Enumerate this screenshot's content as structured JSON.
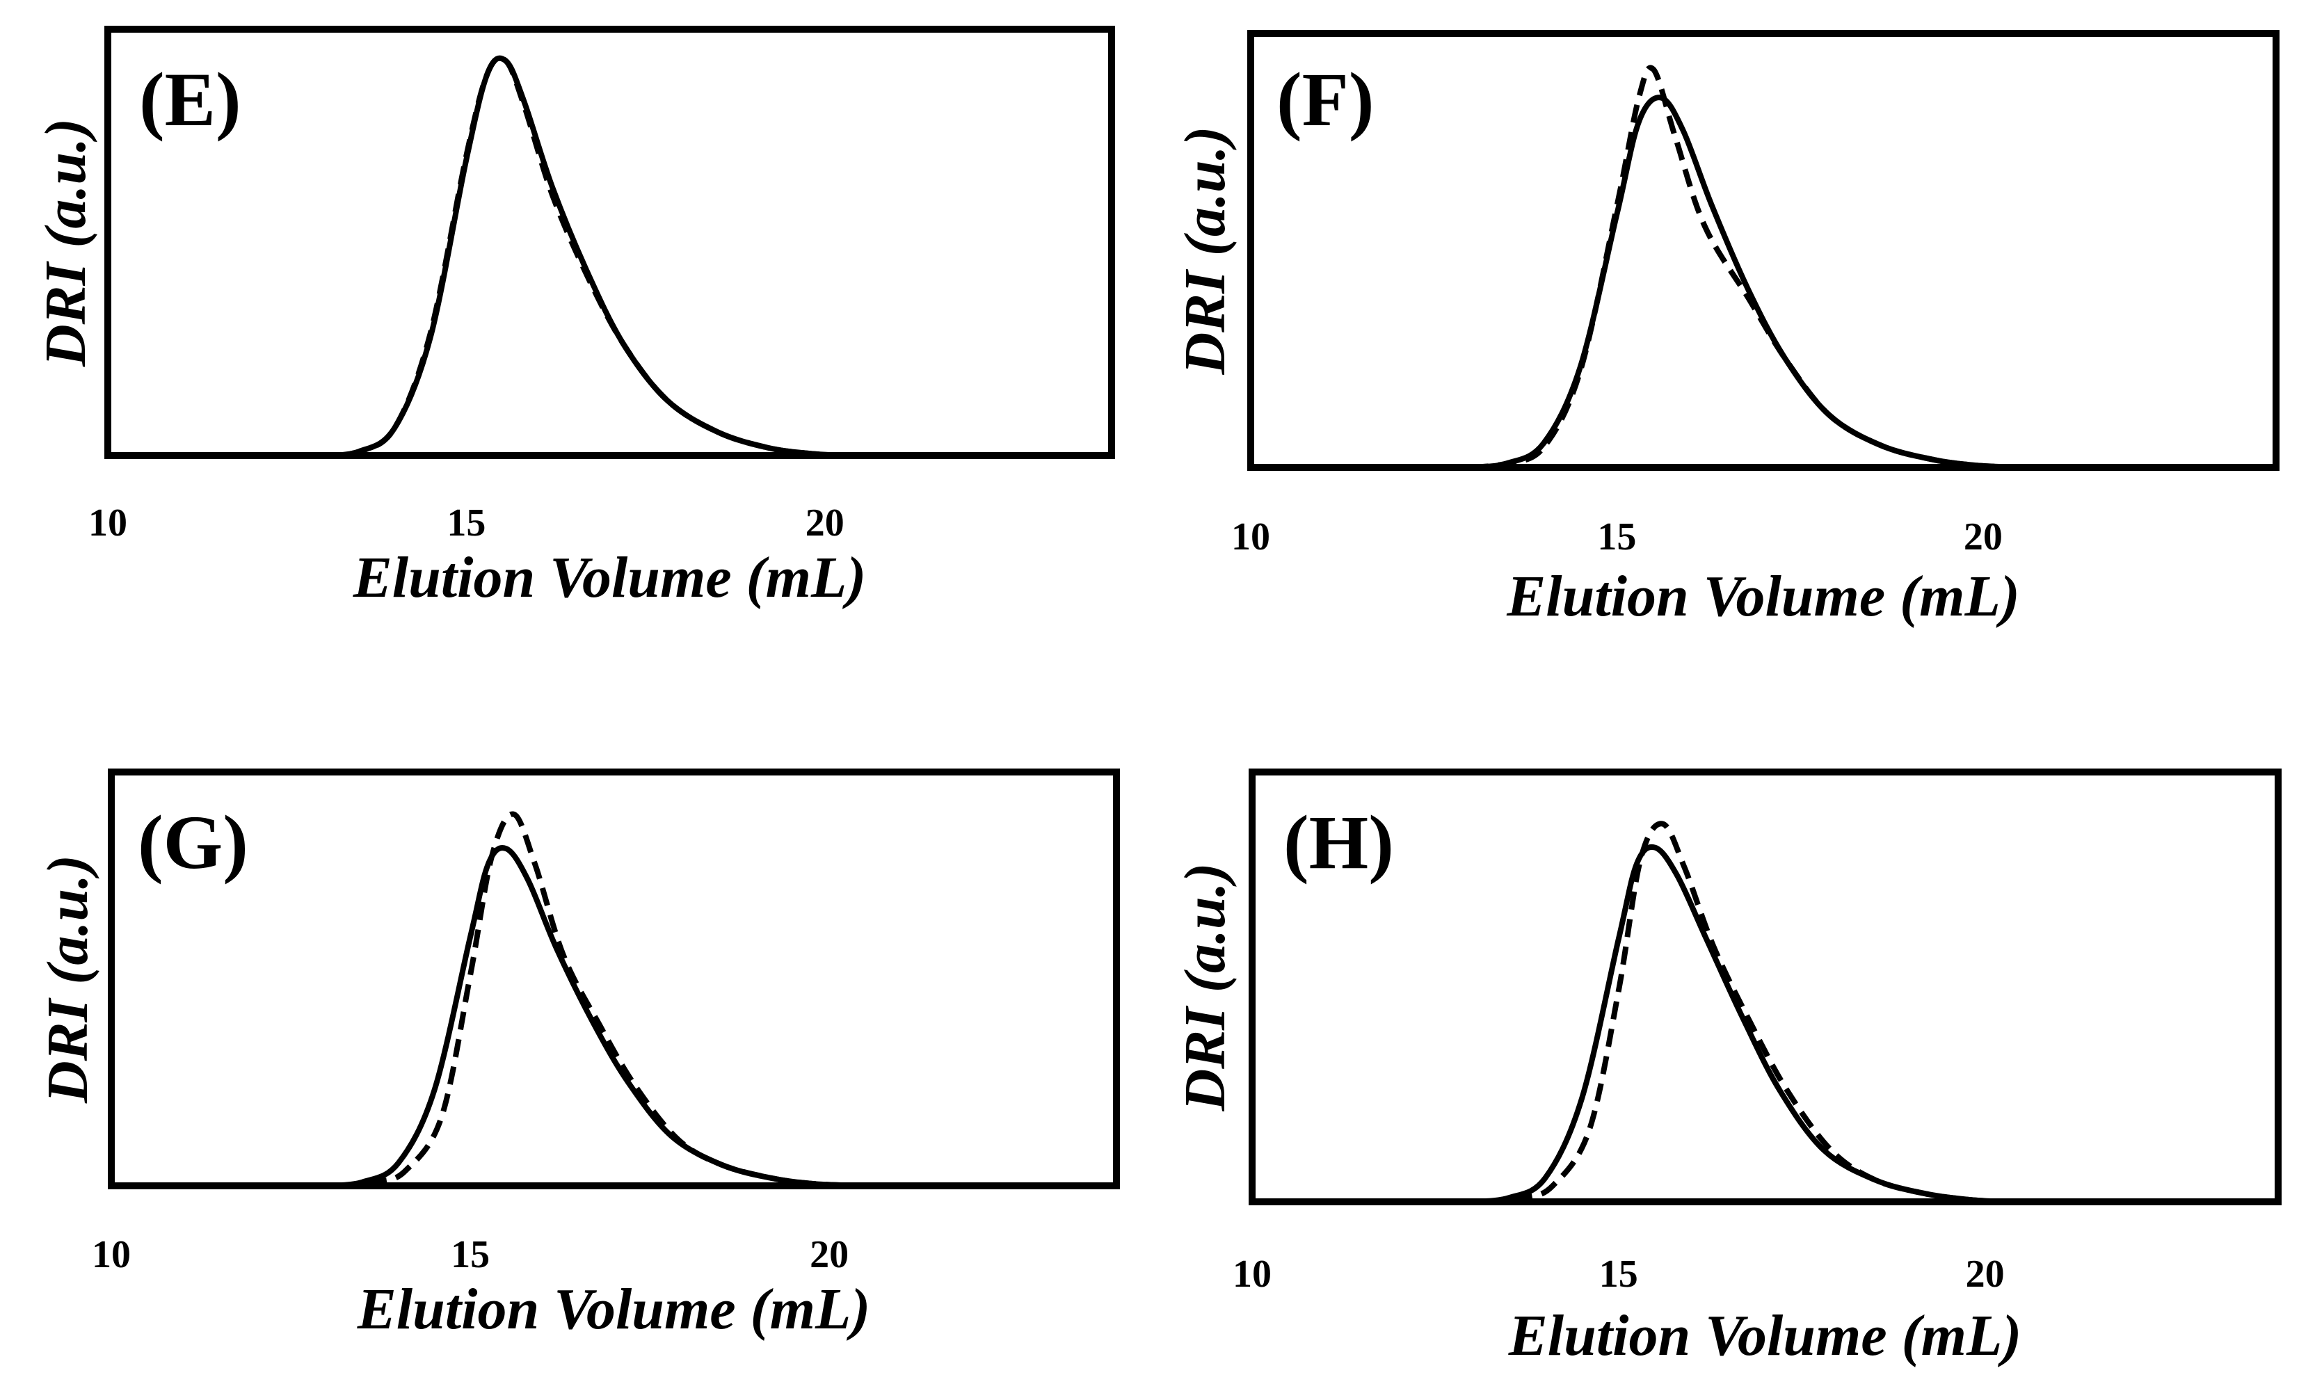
{
  "chart_data": [
    {
      "type": "line",
      "panel_label": "(E)",
      "xlabel": "Elution Volume (mL)",
      "ylabel": "DRI (a.u.)",
      "xlim": [
        10,
        24
      ],
      "ylim": [
        0,
        1.08
      ],
      "xticks": [
        "10",
        "15",
        "20"
      ],
      "series": [
        {
          "name": "solid",
          "style": "solid",
          "x": [
            13.0,
            13.5,
            14.0,
            14.5,
            15.0,
            15.3,
            15.55,
            15.8,
            16.2,
            16.7,
            17.2,
            17.8,
            18.5,
            19.2,
            19.8,
            20.3
          ],
          "y": [
            0.0,
            0.01,
            0.07,
            0.3,
            0.75,
            0.97,
            1.0,
            0.9,
            0.68,
            0.46,
            0.28,
            0.14,
            0.06,
            0.02,
            0.005,
            0.0
          ]
        },
        {
          "name": "dashed",
          "style": "dashed",
          "x": [
            13.0,
            13.5,
            14.0,
            14.5,
            15.0,
            15.3,
            15.55,
            15.8,
            16.2,
            16.7,
            17.2,
            17.8,
            18.5,
            19.2,
            19.8,
            20.3
          ],
          "y": [
            0.0,
            0.01,
            0.07,
            0.31,
            0.76,
            0.97,
            1.0,
            0.89,
            0.66,
            0.45,
            0.28,
            0.14,
            0.06,
            0.02,
            0.005,
            0.0
          ]
        }
      ]
    },
    {
      "type": "line",
      "panel_label": "(F)",
      "xlabel": "Elution Volume (mL)",
      "ylabel": "DRI (a.u.)",
      "xlim": [
        10,
        24
      ],
      "ylim": [
        0,
        1.08
      ],
      "xticks": [
        "10",
        "15",
        "20"
      ],
      "series": [
        {
          "name": "solid",
          "style": "solid",
          "x": [
            13.0,
            13.5,
            14.0,
            14.5,
            15.0,
            15.3,
            15.6,
            15.9,
            16.3,
            16.8,
            17.3,
            17.9,
            18.6,
            19.3,
            19.9,
            20.5
          ],
          "y": [
            0.0,
            0.01,
            0.06,
            0.25,
            0.63,
            0.86,
            0.92,
            0.84,
            0.65,
            0.44,
            0.27,
            0.13,
            0.055,
            0.02,
            0.005,
            0.0
          ]
        },
        {
          "name": "dashed",
          "style": "dashed",
          "x": [
            13.0,
            13.5,
            14.0,
            14.5,
            15.0,
            15.3,
            15.5,
            15.8,
            16.2,
            16.8,
            17.3,
            17.9,
            18.6,
            19.3,
            19.9,
            20.5
          ],
          "y": [
            0.0,
            0.01,
            0.05,
            0.24,
            0.65,
            0.92,
            0.99,
            0.82,
            0.6,
            0.42,
            0.27,
            0.13,
            0.055,
            0.02,
            0.005,
            0.0
          ]
        }
      ]
    },
    {
      "type": "line",
      "panel_label": "(G)",
      "xlabel": "Elution Volume (mL)",
      "ylabel": "DRI (a.u.)",
      "xlim": [
        10,
        24
      ],
      "ylim": [
        0,
        1.08
      ],
      "xticks": [
        "10",
        "15",
        "20"
      ],
      "series": [
        {
          "name": "solid",
          "style": "solid",
          "x": [
            13.0,
            13.5,
            14.0,
            14.5,
            15.0,
            15.25,
            15.5,
            15.8,
            16.2,
            16.7,
            17.2,
            17.8,
            18.5,
            19.2,
            19.8,
            20.5
          ],
          "y": [
            0.0,
            0.01,
            0.06,
            0.25,
            0.65,
            0.84,
            0.88,
            0.8,
            0.62,
            0.43,
            0.27,
            0.13,
            0.055,
            0.02,
            0.005,
            0.0
          ]
        },
        {
          "name": "dashed",
          "style": "dashed",
          "x": [
            13.2,
            13.7,
            14.1,
            14.6,
            15.0,
            15.3,
            15.6,
            15.9,
            16.3,
            16.8,
            17.3,
            17.9,
            18.5,
            19.2,
            19.8,
            20.5
          ],
          "y": [
            0.0,
            0.01,
            0.04,
            0.18,
            0.55,
            0.86,
            0.97,
            0.84,
            0.6,
            0.42,
            0.26,
            0.12,
            0.055,
            0.02,
            0.005,
            0.0
          ]
        }
      ]
    },
    {
      "type": "line",
      "panel_label": "(H)",
      "xlabel": "Elution Volume (mL)",
      "ylabel": "DRI (a.u.)",
      "xlim": [
        10,
        24
      ],
      "ylim": [
        0,
        1.08
      ],
      "xticks": [
        "10",
        "15",
        "20"
      ],
      "series": [
        {
          "name": "solid",
          "style": "solid",
          "x": [
            13.0,
            13.5,
            14.0,
            14.5,
            15.0,
            15.25,
            15.5,
            15.8,
            16.2,
            16.7,
            17.2,
            17.8,
            18.5,
            19.2,
            19.8,
            20.3
          ],
          "y": [
            0.0,
            0.01,
            0.06,
            0.26,
            0.66,
            0.85,
            0.89,
            0.82,
            0.66,
            0.46,
            0.28,
            0.13,
            0.055,
            0.02,
            0.005,
            0.0
          ]
        },
        {
          "name": "dashed",
          "style": "dashed",
          "x": [
            13.2,
            13.7,
            14.1,
            14.6,
            15.0,
            15.3,
            15.6,
            15.9,
            16.3,
            16.8,
            17.3,
            17.9,
            18.5,
            19.2,
            19.8,
            20.3
          ],
          "y": [
            0.0,
            0.01,
            0.04,
            0.18,
            0.53,
            0.86,
            0.95,
            0.84,
            0.64,
            0.45,
            0.28,
            0.13,
            0.055,
            0.02,
            0.005,
            0.0
          ]
        }
      ]
    }
  ]
}
